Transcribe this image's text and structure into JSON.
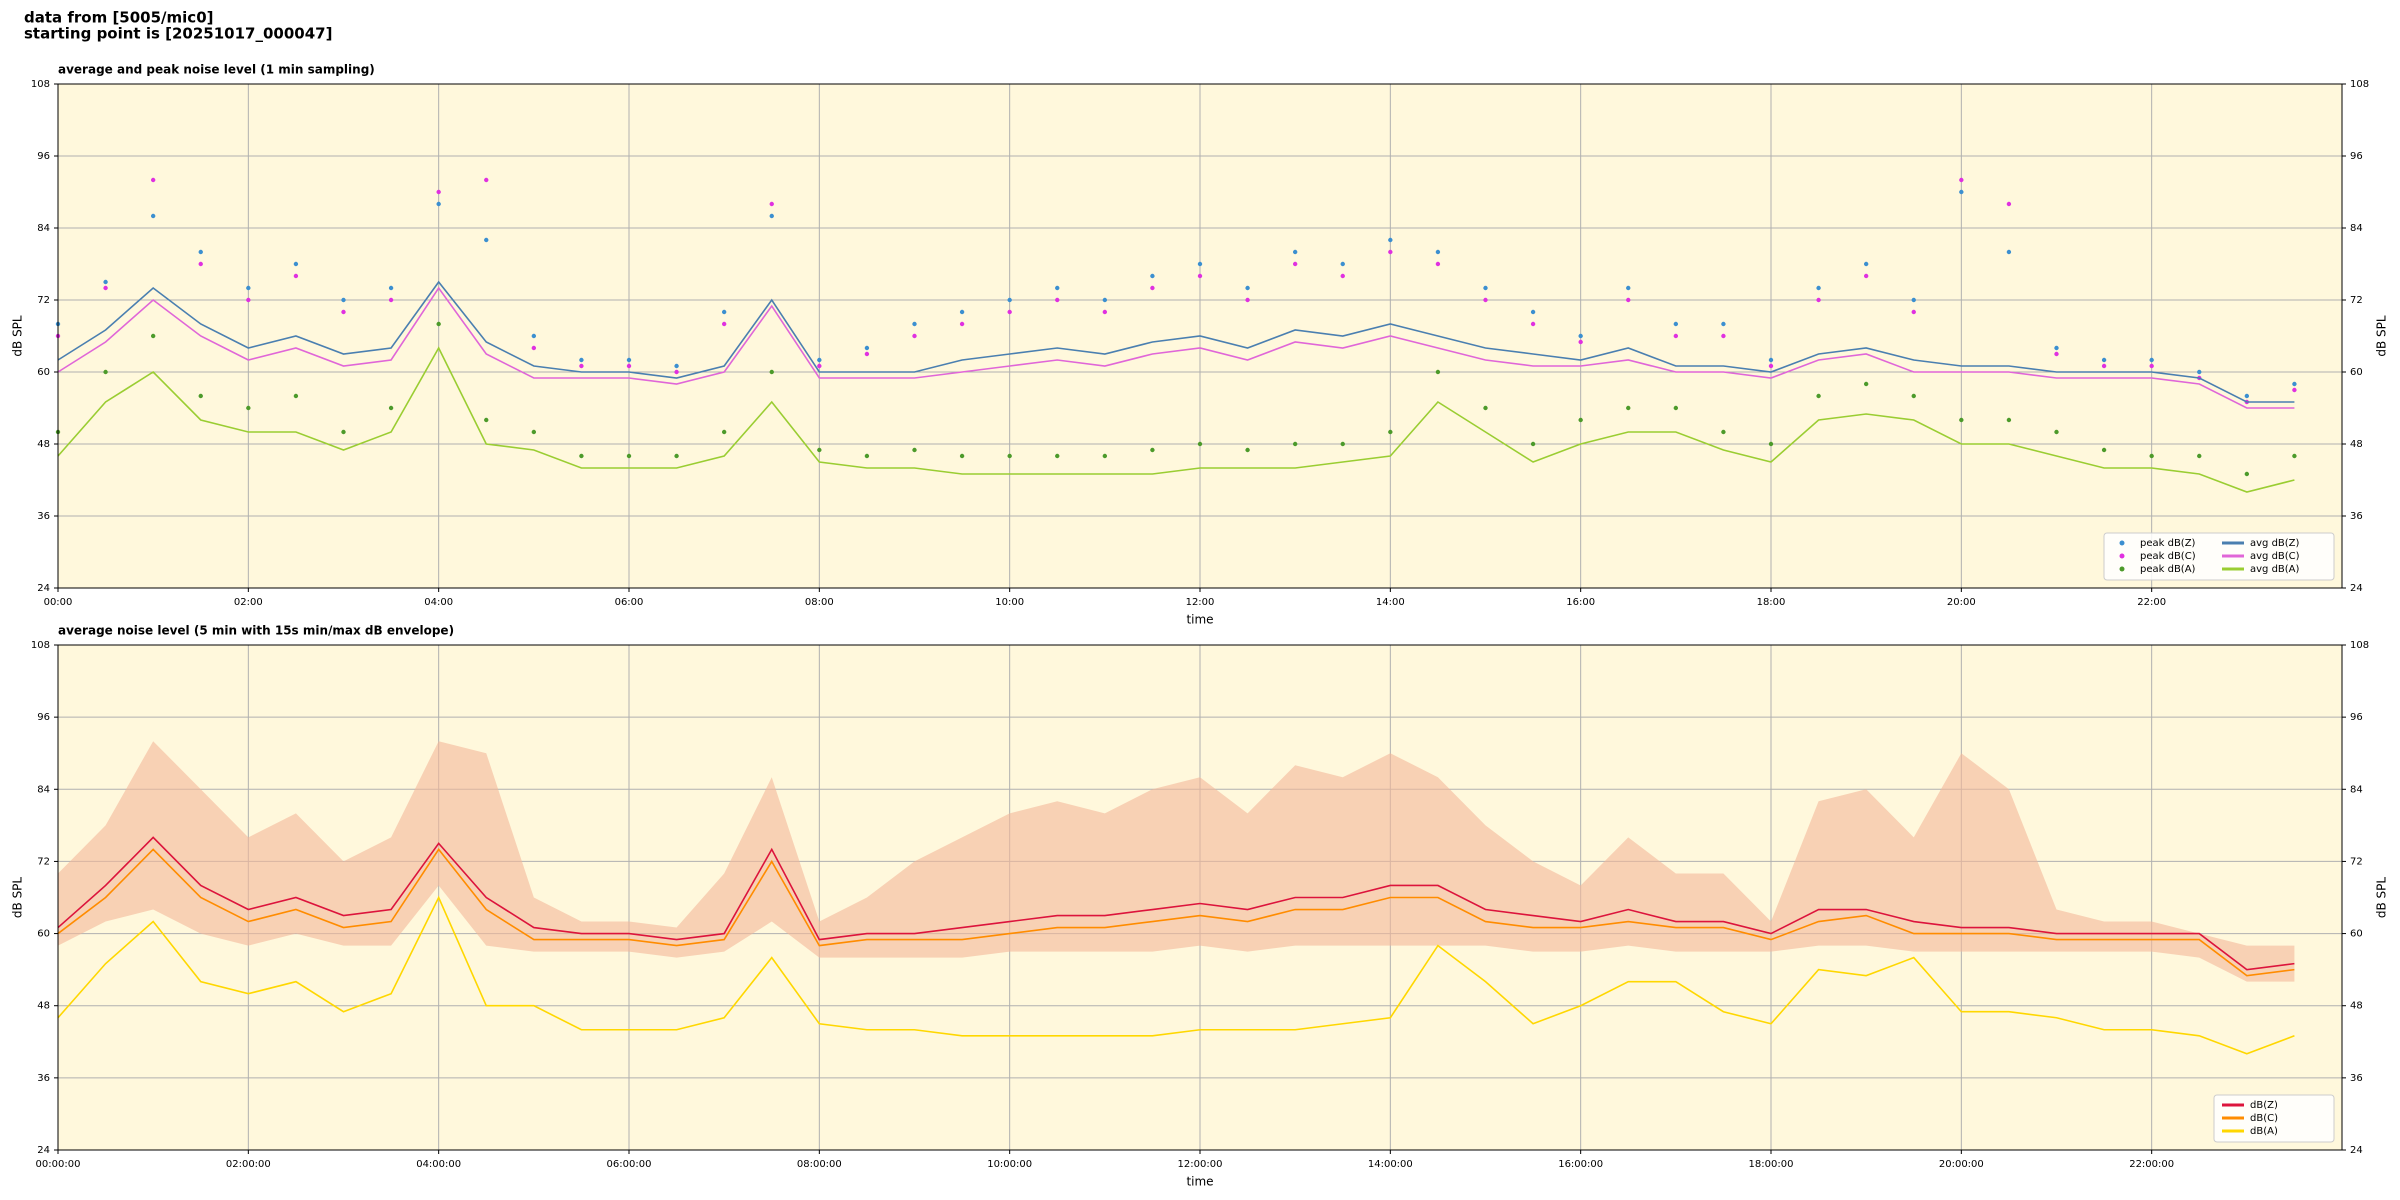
{
  "header": {
    "line1": "data from [5005/mic0]",
    "line2": "starting point is [20251017_000047]"
  },
  "chart_data": [
    {
      "type": "line",
      "title": "average and peak noise level (1 min sampling)",
      "xlabel": "time",
      "ylabel": "dB SPL",
      "background": "#fff8dc",
      "grid": true,
      "legend": "lower right",
      "xlim": [
        0,
        24
      ],
      "ylim": [
        24,
        108
      ],
      "yticks": [
        24,
        36,
        48,
        60,
        72,
        84,
        96,
        108
      ],
      "xticks": [
        {
          "value": 0,
          "label": "00:00"
        },
        {
          "value": 2,
          "label": "02:00"
        },
        {
          "value": 4,
          "label": "04:00"
        },
        {
          "value": 6,
          "label": "06:00"
        },
        {
          "value": 8,
          "label": "08:00"
        },
        {
          "value": 10,
          "label": "10:00"
        },
        {
          "value": 12,
          "label": "12:00"
        },
        {
          "value": 14,
          "label": "14:00"
        },
        {
          "value": 16,
          "label": "16:00"
        },
        {
          "value": 18,
          "label": "18:00"
        },
        {
          "value": 20,
          "label": "20:00"
        },
        {
          "value": 22,
          "label": "22:00"
        }
      ],
      "x": [
        0,
        0.5,
        1,
        1.5,
        2,
        2.5,
        3,
        3.5,
        4,
        4.5,
        5,
        5.5,
        6,
        6.5,
        7,
        7.5,
        8,
        8.5,
        9,
        9.5,
        10,
        10.5,
        11,
        11.5,
        12,
        12.5,
        13,
        13.5,
        14,
        14.5,
        15,
        15.5,
        16,
        16.5,
        17,
        17.5,
        18,
        18.5,
        19,
        19.5,
        20,
        20.5,
        21,
        21.5,
        22,
        22.5,
        23,
        23.5
      ],
      "series": [
        {
          "name": "peak dB(Z)",
          "mark": "dot",
          "color": "#3b8fd0",
          "values": [
            68,
            75,
            86,
            80,
            74,
            78,
            72,
            74,
            88,
            82,
            66,
            62,
            62,
            61,
            70,
            86,
            62,
            64,
            68,
            70,
            72,
            74,
            72,
            76,
            78,
            74,
            80,
            78,
            82,
            80,
            74,
            70,
            66,
            74,
            68,
            68,
            62,
            74,
            78,
            72,
            90,
            80,
            64,
            62,
            62,
            60,
            56,
            58
          ]
        },
        {
          "name": "peak dB(C)",
          "mark": "dot",
          "color": "#e030e0",
          "values": [
            66,
            74,
            92,
            78,
            72,
            76,
            70,
            72,
            90,
            92,
            64,
            61,
            61,
            60,
            68,
            88,
            61,
            63,
            66,
            68,
            70,
            72,
            70,
            74,
            76,
            72,
            78,
            76,
            80,
            78,
            72,
            68,
            65,
            72,
            66,
            66,
            61,
            72,
            76,
            70,
            92,
            88,
            63,
            61,
            61,
            59,
            55,
            57
          ]
        },
        {
          "name": "peak dB(A)",
          "mark": "dot",
          "color": "#4c9a2a",
          "values": [
            50,
            60,
            66,
            56,
            54,
            56,
            50,
            54,
            68,
            52,
            50,
            46,
            46,
            46,
            50,
            60,
            47,
            46,
            47,
            46,
            46,
            46,
            46,
            47,
            48,
            47,
            48,
            48,
            50,
            60,
            54,
            48,
            52,
            54,
            54,
            50,
            48,
            56,
            58,
            56,
            52,
            52,
            50,
            47,
            46,
            46,
            43,
            46
          ]
        },
        {
          "name": "avg dB(Z)",
          "mark": "line",
          "color": "#4a7fb0",
          "values": [
            62,
            67,
            74,
            68,
            64,
            66,
            63,
            64,
            75,
            65,
            61,
            60,
            60,
            59,
            61,
            72,
            60,
            60,
            60,
            62,
            63,
            64,
            63,
            65,
            66,
            64,
            67,
            66,
            68,
            66,
            64,
            63,
            62,
            64,
            61,
            61,
            60,
            63,
            64,
            62,
            61,
            61,
            60,
            60,
            60,
            59,
            55,
            55
          ]
        },
        {
          "name": "avg dB(C)",
          "mark": "line",
          "color": "#e066d8",
          "values": [
            60,
            65,
            72,
            66,
            62,
            64,
            61,
            62,
            74,
            63,
            59,
            59,
            59,
            58,
            60,
            71,
            59,
            59,
            59,
            60,
            61,
            62,
            61,
            63,
            64,
            62,
            65,
            64,
            66,
            64,
            62,
            61,
            61,
            62,
            60,
            60,
            59,
            62,
            63,
            60,
            60,
            60,
            59,
            59,
            59,
            58,
            54,
            54
          ]
        },
        {
          "name": "avg dB(A)",
          "mark": "line",
          "color": "#9acd32",
          "values": [
            46,
            55,
            60,
            52,
            50,
            50,
            47,
            50,
            64,
            48,
            47,
            44,
            44,
            44,
            46,
            55,
            45,
            44,
            44,
            43,
            43,
            43,
            43,
            43,
            44,
            44,
            44,
            45,
            46,
            55,
            50,
            45,
            48,
            50,
            50,
            47,
            45,
            52,
            53,
            52,
            48,
            48,
            46,
            44,
            44,
            43,
            40,
            42
          ]
        }
      ]
    },
    {
      "type": "line",
      "title": "average noise level (5 min with 15s min/max dB envelope)",
      "xlabel": "time",
      "ylabel": "dB SPL",
      "background": "#fff8dc",
      "grid": true,
      "legend": "lower right",
      "xlim": [
        0,
        24
      ],
      "ylim": [
        24,
        108
      ],
      "yticks": [
        24,
        36,
        48,
        60,
        72,
        84,
        96,
        108
      ],
      "xticks": [
        {
          "value": 0,
          "label": "00:00:00"
        },
        {
          "value": 2,
          "label": "02:00:00"
        },
        {
          "value": 4,
          "label": "04:00:00"
        },
        {
          "value": 6,
          "label": "06:00:00"
        },
        {
          "value": 8,
          "label": "08:00:00"
        },
        {
          "value": 10,
          "label": "10:00:00"
        },
        {
          "value": 12,
          "label": "12:00:00"
        },
        {
          "value": 14,
          "label": "14:00:00"
        },
        {
          "value": 16,
          "label": "16:00:00"
        },
        {
          "value": 18,
          "label": "18:00:00"
        },
        {
          "value": 20,
          "label": "20:00:00"
        },
        {
          "value": 22,
          "label": "22:00:00"
        }
      ],
      "x": [
        0,
        0.5,
        1,
        1.5,
        2,
        2.5,
        3,
        3.5,
        4,
        4.5,
        5,
        5.5,
        6,
        6.5,
        7,
        7.5,
        8,
        8.5,
        9,
        9.5,
        10,
        10.5,
        11,
        11.5,
        12,
        12.5,
        13,
        13.5,
        14,
        14.5,
        15,
        15.5,
        16,
        16.5,
        17,
        17.5,
        18,
        18.5,
        19,
        19.5,
        20,
        20.5,
        21,
        21.5,
        22,
        22.5,
        23,
        23.5
      ],
      "envelope": {
        "color": "#f4b79a",
        "upper": [
          70,
          78,
          92,
          84,
          76,
          80,
          72,
          76,
          92,
          90,
          66,
          62,
          62,
          61,
          70,
          86,
          62,
          66,
          72,
          76,
          80,
          82,
          80,
          84,
          86,
          80,
          88,
          86,
          90,
          86,
          78,
          72,
          68,
          76,
          70,
          70,
          62,
          82,
          84,
          76,
          90,
          84,
          64,
          62,
          62,
          60,
          58,
          58
        ],
        "lower": [
          58,
          62,
          64,
          60,
          58,
          60,
          58,
          58,
          68,
          58,
          57,
          57,
          57,
          56,
          57,
          62,
          56,
          56,
          56,
          56,
          57,
          57,
          57,
          57,
          58,
          57,
          58,
          58,
          58,
          58,
          58,
          57,
          57,
          58,
          57,
          57,
          57,
          58,
          58,
          57,
          57,
          57,
          57,
          57,
          57,
          56,
          52,
          52
        ]
      },
      "series": [
        {
          "name": "dB(Z)",
          "mark": "line",
          "color": "#dc143c",
          "values": [
            61,
            68,
            76,
            68,
            64,
            66,
            63,
            64,
            75,
            66,
            61,
            60,
            60,
            59,
            60,
            74,
            59,
            60,
            60,
            61,
            62,
            63,
            63,
            64,
            65,
            64,
            66,
            66,
            68,
            68,
            64,
            63,
            62,
            64,
            62,
            62,
            60,
            64,
            64,
            62,
            61,
            61,
            60,
            60,
            60,
            60,
            54,
            55
          ]
        },
        {
          "name": "dB(C)",
          "mark": "line",
          "color": "#ff8c00",
          "values": [
            60,
            66,
            74,
            66,
            62,
            64,
            61,
            62,
            74,
            64,
            59,
            59,
            59,
            58,
            59,
            72,
            58,
            59,
            59,
            59,
            60,
            61,
            61,
            62,
            63,
            62,
            64,
            64,
            66,
            66,
            62,
            61,
            61,
            62,
            61,
            61,
            59,
            62,
            63,
            60,
            60,
            60,
            59,
            59,
            59,
            59,
            53,
            54
          ]
        },
        {
          "name": "dB(A)",
          "mark": "line",
          "color": "#ffd700",
          "values": [
            46,
            55,
            62,
            52,
            50,
            52,
            47,
            50,
            66,
            48,
            48,
            44,
            44,
            44,
            46,
            56,
            45,
            44,
            44,
            43,
            43,
            43,
            43,
            43,
            44,
            44,
            44,
            45,
            46,
            58,
            52,
            45,
            48,
            52,
            52,
            47,
            45,
            54,
            53,
            56,
            47,
            47,
            46,
            44,
            44,
            43,
            40,
            43
          ]
        }
      ]
    }
  ]
}
